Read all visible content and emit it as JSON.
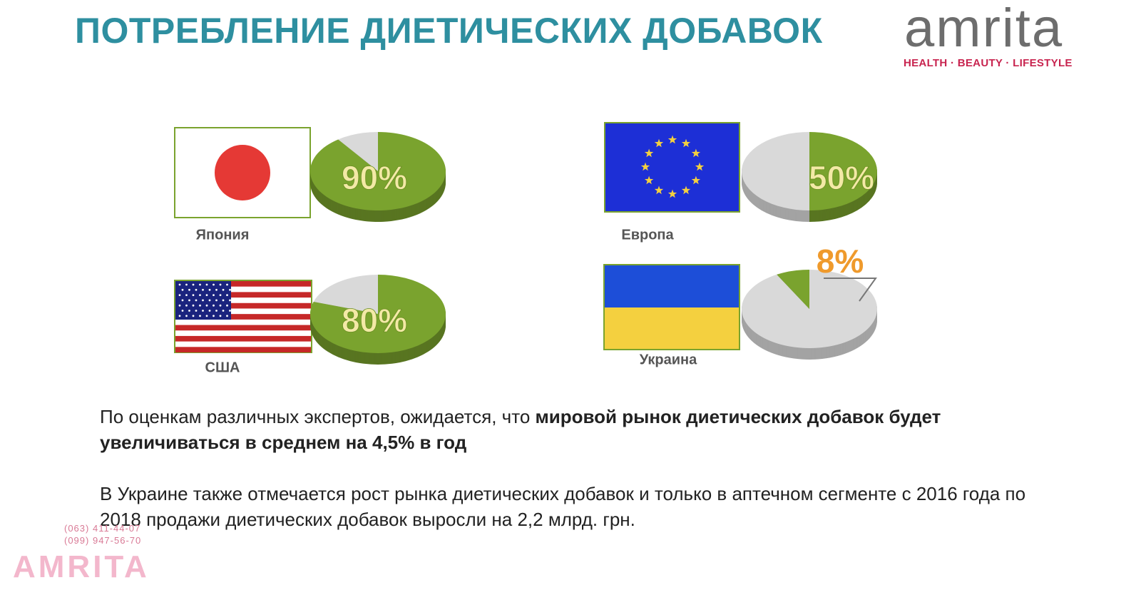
{
  "header": {
    "title": "ПОТРЕБЛЕНИЕ ДИЕТИЧЕСКИХ ДОБАВОК",
    "logo": "amrita",
    "tagline": "HEALTH · BEAUTY · LIFESTYLE"
  },
  "chart_data": [
    {
      "type": "pie",
      "title": "Япония",
      "values": [
        90
      ],
      "value_labels": [
        "90%"
      ],
      "color": "#7aa32e",
      "rest_color": "#d9d9d9",
      "label_color": "#f3e9a6",
      "label_position": "inside",
      "counterclock": false
    },
    {
      "type": "pie",
      "title": "США",
      "values": [
        80
      ],
      "value_labels": [
        "80%"
      ],
      "color": "#7aa32e",
      "rest_color": "#d9d9d9",
      "label_color": "#f3e9a6",
      "label_position": "inside",
      "counterclock": false
    },
    {
      "type": "pie",
      "title": "Европа",
      "values": [
        50
      ],
      "value_labels": [
        "50%"
      ],
      "color": "#7aa32e",
      "rest_color": "#d9d9d9",
      "label_color": "#f3e9a6",
      "label_position": "inside",
      "counterclock": false
    },
    {
      "type": "pie",
      "title": "Украина",
      "values": [
        8
      ],
      "value_labels": [
        "8%"
      ],
      "color": "#7aa32e",
      "rest_color": "#d9d9d9",
      "label_color": "#ef9a2c",
      "label_position": "outside",
      "counterclock": true
    }
  ],
  "text": {
    "p1_regular": "По оценкам различных экспертов, ожидается, что ",
    "p1_bold": "мировой рынок диетических добавок будет увеличиваться в среднем на 4,5% в год",
    "p2": "В Украине также отмечается рост рынка диетических добавок и только в аптечном сегменте с 2016 года по 2018 продажи диетических добавок выросли на 2,2 млрд. грн."
  },
  "watermark": {
    "phones": [
      "(063) 411-44-07",
      "(099) 947-56-70"
    ],
    "brand": "AMRITA"
  }
}
